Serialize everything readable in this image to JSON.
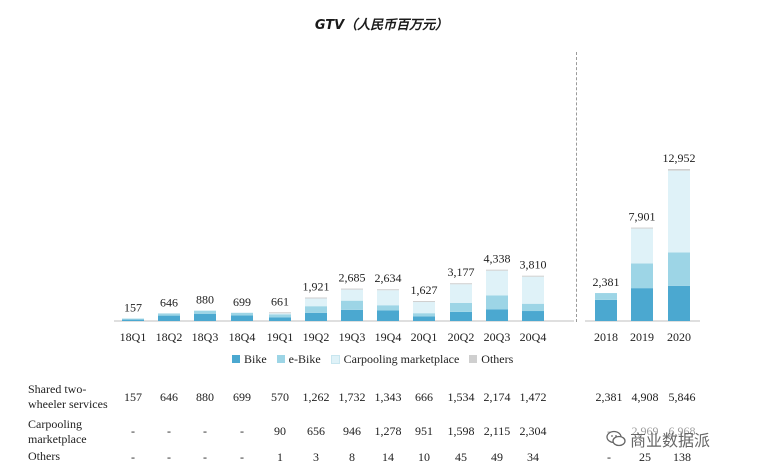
{
  "title": "GTV（人民币百万元）",
  "colors": {
    "bike": "#4ba8d0",
    "ebike": "#9dd5e6",
    "carpooling": "#dff2f8",
    "others": "#cfcfcf",
    "axis": "#bfbfbf"
  },
  "chart_data": {
    "type": "bar",
    "stacked": true,
    "categories": [
      "18Q1",
      "18Q2",
      "18Q3",
      "18Q4",
      "19Q1",
      "19Q2",
      "19Q3",
      "19Q4",
      "20Q1",
      "20Q2",
      "20Q3",
      "20Q4",
      "2018",
      "2019",
      "2020"
    ],
    "totals": [
      "157",
      "646",
      "880",
      "699",
      "661",
      "1,921",
      "2,685",
      "2,634",
      "1,627",
      "3,177",
      "4,338",
      "3,810",
      "2,381",
      "7,901",
      "12,952"
    ],
    "series": [
      {
        "name": "Bike",
        "values": [
          120,
          460,
          620,
          480,
          300,
          700,
          950,
          900,
          400,
          780,
          1000,
          850,
          1800,
          2800,
          3000
        ]
      },
      {
        "name": "e-Bike",
        "values": [
          37,
          186,
          260,
          219,
          270,
          562,
          782,
          443,
          266,
          754,
          1174,
          622,
          581,
          2108,
          2846
        ]
      },
      {
        "name": "Carpooling marketplace",
        "values": [
          0,
          0,
          0,
          0,
          90,
          656,
          946,
          1278,
          951,
          1598,
          2115,
          2304,
          0,
          2969,
          6968
        ]
      },
      {
        "name": "Others",
        "values": [
          0,
          0,
          0,
          0,
          1,
          3,
          8,
          14,
          10,
          45,
          49,
          34,
          0,
          25,
          138
        ]
      }
    ],
    "legend": [
      "Bike",
      "e-Bike",
      "Carpooling marketplace",
      "Others"
    ],
    "legend_position": "bottom",
    "grid": false
  },
  "table": {
    "rows": [
      {
        "label": "Shared two-wheeler services",
        "values": [
          "157",
          "646",
          "880",
          "699",
          "570",
          "1,262",
          "1,732",
          "1,343",
          "666",
          "1,534",
          "2,174",
          "1,472",
          "2,381",
          "4,908",
          "5,846"
        ]
      },
      {
        "label": "Carpooling marketplace",
        "values": [
          "-",
          "-",
          "-",
          "-",
          "90",
          "656",
          "946",
          "1,278",
          "951",
          "1,598",
          "2,115",
          "2,304",
          "-",
          "2,969",
          "6,968"
        ]
      },
      {
        "label": "Others",
        "values": [
          "-",
          "-",
          "-",
          "-",
          "1",
          "3",
          "8",
          "14",
          "10",
          "45",
          "49",
          "34",
          "-",
          "25",
          "138"
        ]
      }
    ]
  },
  "watermark": {
    "text": "商业数据派",
    "icon": "wechat-icon"
  }
}
